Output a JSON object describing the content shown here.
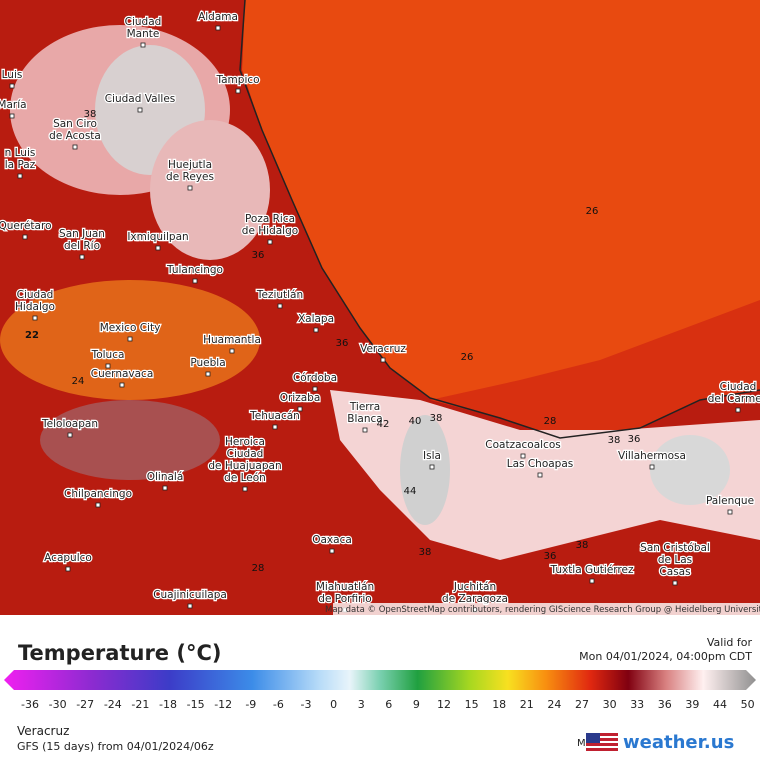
{
  "header": {
    "title": "Temperature (°C)",
    "valid_label": "Valid for",
    "valid_time": "Mon 04/01/2024, 04:00pm CDT"
  },
  "colorbar": {
    "ticks": [
      -36,
      -30,
      -27,
      -24,
      -21,
      -18,
      -15,
      -12,
      -9,
      -6,
      -3,
      0,
      3,
      6,
      9,
      12,
      15,
      18,
      21,
      24,
      27,
      30,
      33,
      36,
      39,
      44,
      50
    ]
  },
  "footer": {
    "location": "Veracruz",
    "model_run": "GFS (15 days) from 04/01/2024/06z",
    "model_label": "Model:",
    "brand": "weather.us"
  },
  "map": {
    "places": [
      [
        "Ciudad",
        "Mante"
      ],
      [
        "Aldama"
      ],
      [
        "Luis"
      ],
      [
        "María"
      ],
      [
        "Tampico"
      ],
      [
        "Ciudad Valles"
      ],
      [
        "San Ciro",
        "de Acosta"
      ],
      [
        "n Luis",
        "la Paz"
      ],
      [
        "Huejutla",
        "de Reyes"
      ],
      [
        "Poza Rica",
        "de Hidalgo"
      ],
      [
        "Querétaro"
      ],
      [
        "San Juan",
        "del Río"
      ],
      [
        "Ixmiquilpan"
      ],
      [
        "Tulancingo"
      ],
      [
        "Teziutlán"
      ],
      [
        "Ciudad",
        "Hidalgo"
      ],
      [
        "Xalapa"
      ],
      [
        "Mexico City"
      ],
      [
        "Huamantla"
      ],
      [
        "Veracruz"
      ],
      [
        "Toluca"
      ],
      [
        "Puebla"
      ],
      [
        "Cuernavaca"
      ],
      [
        "Córdoba"
      ],
      [
        "Orizaba"
      ],
      [
        "Tierra",
        "Blanca"
      ],
      [
        "Tehuacán"
      ],
      [
        "Teloloapan"
      ],
      [
        "Coatzacoalcos"
      ],
      [
        "Heroica",
        "Ciudad",
        "de Huajuapan",
        "de León"
      ],
      [
        "Isla"
      ],
      [
        "Las Choapas"
      ],
      [
        "Villahermosa"
      ],
      [
        "Olinalá"
      ],
      [
        "Chilpancingo"
      ],
      [
        "Palenque"
      ],
      [
        "Oaxaca"
      ],
      [
        "San Cristóbal",
        "de Las",
        "Casas"
      ],
      [
        "Acapulco"
      ],
      [
        "Tuxtla Gutiérrez"
      ],
      [
        "Miahuatlán",
        "de Porfirio"
      ],
      [
        "Juchitán",
        "de Zaragoza"
      ],
      [
        "Cuajinicuilapa"
      ],
      [
        "Ciudad",
        "del Carmen"
      ]
    ],
    "contour_labels": [
      38,
      26,
      22,
      24,
      36,
      36,
      26,
      42,
      40,
      38,
      28,
      38,
      36,
      44,
      38,
      36,
      38,
      28
    ],
    "attribution": "Map data © OpenStreetMap contributors, rendering GIScience Research Group @ Heidelberg University"
  }
}
